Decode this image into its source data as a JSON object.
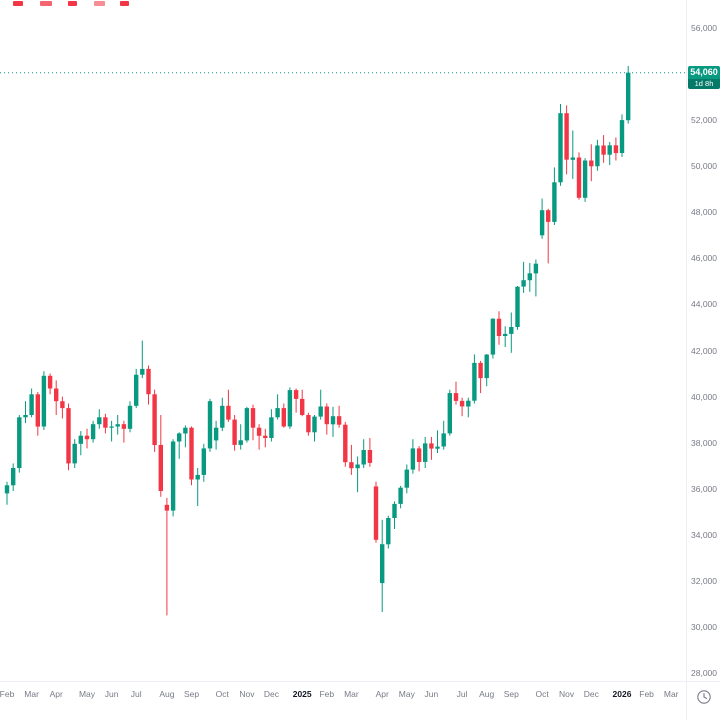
{
  "price_axis": {
    "labels": [
      {
        "text": "56,000",
        "value": 56000
      },
      {
        "text": "52,000",
        "value": 52000
      },
      {
        "text": "50,000",
        "value": 50000
      },
      {
        "text": "48,000",
        "value": 48000
      },
      {
        "text": "46,000",
        "value": 46000
      },
      {
        "text": "44,000",
        "value": 44000
      },
      {
        "text": "42,000",
        "value": 42000
      },
      {
        "text": "40,000",
        "value": 40000
      },
      {
        "text": "38,000",
        "value": 38000
      },
      {
        "text": "36,000",
        "value": 36000
      },
      {
        "text": "34,000",
        "value": 34000
      },
      {
        "text": "32,000",
        "value": 32000
      },
      {
        "text": "30,000",
        "value": 30000
      },
      {
        "text": "28,000",
        "value": 28000
      }
    ]
  },
  "time_axis": {
    "ticks": [
      {
        "text": "Feb",
        "slot": 0
      },
      {
        "text": "Mar",
        "slot": 4
      },
      {
        "text": "Apr",
        "slot": 8
      },
      {
        "text": "May",
        "slot": 13
      },
      {
        "text": "Jun",
        "slot": 17
      },
      {
        "text": "Jul",
        "slot": 21
      },
      {
        "text": "Aug",
        "slot": 26
      },
      {
        "text": "Sep",
        "slot": 30
      },
      {
        "text": "Oct",
        "slot": 35
      },
      {
        "text": "Nov",
        "slot": 39
      },
      {
        "text": "Dec",
        "slot": 43
      },
      {
        "text": "2025",
        "slot": 48,
        "year": true
      },
      {
        "text": "Feb",
        "slot": 52
      },
      {
        "text": "Mar",
        "slot": 56
      },
      {
        "text": "Apr",
        "slot": 61
      },
      {
        "text": "May",
        "slot": 65
      },
      {
        "text": "Jun",
        "slot": 69
      },
      {
        "text": "Jul",
        "slot": 74
      },
      {
        "text": "Aug",
        "slot": 78
      },
      {
        "text": "Sep",
        "slot": 82
      },
      {
        "text": "Oct",
        "slot": 87
      },
      {
        "text": "Nov",
        "slot": 91
      },
      {
        "text": "Dec",
        "slot": 95
      },
      {
        "text": "2026",
        "slot": 100,
        "year": true
      },
      {
        "text": "Feb",
        "slot": 104
      },
      {
        "text": "Mar",
        "slot": 108
      }
    ]
  },
  "artifacts": [
    {
      "x": 13,
      "w": 10,
      "color": "#f23645"
    },
    {
      "x": 40,
      "w": 12,
      "color": "#f5656f"
    },
    {
      "x": 68,
      "w": 9,
      "color": "#f23645"
    },
    {
      "x": 94,
      "w": 11,
      "color": "#f58e95"
    },
    {
      "x": 120,
      "w": 9,
      "color": "#f23645"
    }
  ],
  "chart_data": {
    "type": "candlestick",
    "ylim": [
      28000,
      56000
    ],
    "y_tick_step": 2000,
    "grid": false,
    "current_price": 54060,
    "current_price_label": "54,060",
    "countdown": "1d 8h",
    "colors": {
      "up": "#089981",
      "down": "#f23645",
      "price_line": "#089981"
    },
    "candles": [
      [
        35800,
        36300,
        35300,
        36150
      ],
      [
        36150,
        37100,
        35900,
        36900
      ],
      [
        36900,
        39200,
        36700,
        39100
      ],
      [
        39100,
        39800,
        38850,
        39200
      ],
      [
        39200,
        40350,
        39100,
        40100
      ],
      [
        40100,
        40200,
        38300,
        38700
      ],
      [
        38700,
        41100,
        38550,
        40900
      ],
      [
        40900,
        41000,
        40100,
        40350
      ],
      [
        40350,
        40700,
        39200,
        39800
      ],
      [
        39800,
        40000,
        39050,
        39500
      ],
      [
        39500,
        39700,
        36800,
        37100
      ],
      [
        37100,
        38150,
        36900,
        37950
      ],
      [
        37950,
        38500,
        37450,
        38300
      ],
      [
        38300,
        38600,
        37750,
        38150
      ],
      [
        38150,
        38950,
        38000,
        38800
      ],
      [
        38800,
        39450,
        38600,
        39100
      ],
      [
        39100,
        39250,
        38400,
        38650
      ],
      [
        38650,
        38950,
        38050,
        38700
      ],
      [
        38700,
        39200,
        38350,
        38800
      ],
      [
        38800,
        38950,
        38000,
        38600
      ],
      [
        38600,
        39800,
        38450,
        39600
      ],
      [
        39600,
        41200,
        39500,
        40950
      ],
      [
        40950,
        42430,
        40800,
        41200
      ],
      [
        41200,
        41350,
        39650,
        40100
      ],
      [
        40100,
        40300,
        37600,
        37900
      ],
      [
        37900,
        39200,
        35650,
        35900
      ],
      [
        35300,
        35600,
        30500,
        35050
      ],
      [
        35050,
        38150,
        34800,
        38050
      ],
      [
        38050,
        38450,
        37300,
        38400
      ],
      [
        38400,
        38750,
        37800,
        38650
      ],
      [
        38650,
        38700,
        36150,
        36400
      ],
      [
        36400,
        36900,
        35250,
        36600
      ],
      [
        36600,
        37950,
        36300,
        37750
      ],
      [
        37750,
        39900,
        37600,
        39800
      ],
      [
        38100,
        38950,
        37700,
        38650
      ],
      [
        38650,
        39950,
        38500,
        39600
      ],
      [
        39600,
        40300,
        38900,
        39000
      ],
      [
        39000,
        39200,
        37650,
        37900
      ],
      [
        37900,
        38800,
        37700,
        38100
      ],
      [
        38100,
        39550,
        38000,
        39500
      ],
      [
        39500,
        39650,
        38100,
        38650
      ],
      [
        38650,
        38800,
        37700,
        38300
      ],
      [
        38300,
        38600,
        37800,
        38200
      ],
      [
        38200,
        39450,
        38050,
        39100
      ],
      [
        39100,
        40100,
        39000,
        39500
      ],
      [
        39500,
        39700,
        38650,
        38700
      ],
      [
        38700,
        40400,
        38600,
        40280
      ],
      [
        40280,
        40350,
        39300,
        39900
      ],
      [
        39900,
        40300,
        39150,
        39200
      ],
      [
        39200,
        39300,
        38300,
        38450
      ],
      [
        38450,
        39200,
        38050,
        39130
      ],
      [
        39130,
        40300,
        39000,
        39570
      ],
      [
        39570,
        39700,
        38350,
        38800
      ],
      [
        38800,
        39550,
        38250,
        39150
      ],
      [
        39150,
        39600,
        38650,
        38780
      ],
      [
        38780,
        38900,
        36950,
        37150
      ],
      [
        37150,
        37900,
        36600,
        36890
      ],
      [
        36890,
        37400,
        35850,
        37050
      ],
      [
        37050,
        38150,
        36900,
        37680
      ],
      [
        37680,
        38200,
        36950,
        37120
      ],
      [
        36100,
        36300,
        33650,
        33780
      ],
      [
        31900,
        34650,
        30650,
        33590
      ],
      [
        33590,
        34830,
        33400,
        34730
      ],
      [
        34730,
        35450,
        34250,
        35340
      ],
      [
        35340,
        36120,
        35150,
        36045
      ],
      [
        36045,
        37050,
        35800,
        36830
      ],
      [
        36830,
        38150,
        36650,
        37750
      ],
      [
        37750,
        37850,
        36750,
        37160
      ],
      [
        37160,
        38250,
        36900,
        37965
      ],
      [
        37965,
        38250,
        37250,
        37740
      ],
      [
        37740,
        38530,
        37550,
        37830
      ],
      [
        37830,
        38950,
        37700,
        38400
      ],
      [
        38400,
        40300,
        38300,
        40150
      ],
      [
        40150,
        40650,
        39650,
        39810
      ],
      [
        39810,
        39950,
        39150,
        39570
      ],
      [
        39570,
        39950,
        39100,
        39820
      ],
      [
        39820,
        41830,
        39700,
        41460
      ],
      [
        41460,
        41550,
        40150,
        40800
      ],
      [
        40800,
        41850,
        40450,
        41820
      ],
      [
        41820,
        43400,
        41650,
        43380
      ],
      [
        43380,
        43700,
        42250,
        42630
      ],
      [
        42630,
        43050,
        42150,
        42720
      ],
      [
        42720,
        43650,
        41900,
        43020
      ],
      [
        43020,
        44800,
        42900,
        44770
      ],
      [
        44770,
        45850,
        44500,
        45050
      ],
      [
        45050,
        45800,
        44550,
        45350
      ],
      [
        45350,
        45950,
        44350,
        45770
      ],
      [
        47000,
        48600,
        46850,
        48090
      ],
      [
        48090,
        48150,
        45780,
        47580
      ],
      [
        47580,
        49950,
        47450,
        49300
      ],
      [
        49300,
        52700,
        49150,
        52300
      ],
      [
        52300,
        52640,
        49650,
        50280
      ],
      [
        50280,
        51550,
        49450,
        50380
      ],
      [
        50380,
        50600,
        48550,
        48630
      ],
      [
        48630,
        50350,
        48450,
        50250
      ],
      [
        50250,
        50950,
        49350,
        50000
      ],
      [
        50000,
        51150,
        49800,
        50900
      ],
      [
        50900,
        51350,
        50150,
        50500
      ],
      [
        50500,
        51050,
        50050,
        50910
      ],
      [
        50910,
        51250,
        50250,
        50570
      ],
      [
        50570,
        52250,
        50400,
        52000
      ],
      [
        52000,
        54350,
        51850,
        54060
      ]
    ]
  }
}
